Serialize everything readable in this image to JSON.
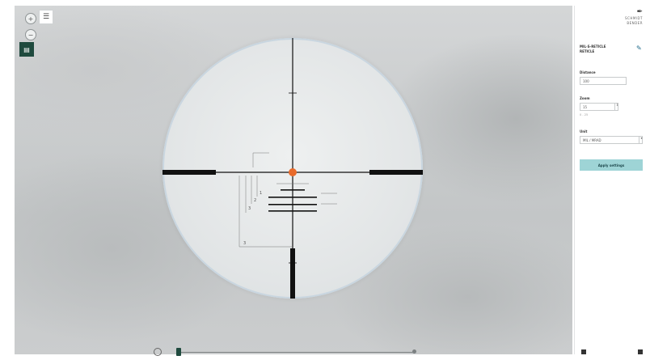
{
  "viewport": {
    "top_left_button_label": "☰",
    "zoom_in_label": "+",
    "zoom_out_label": "−",
    "green_button_label": "▤",
    "colors": {
      "accent": "#1f4a3e",
      "reticle": "#111111",
      "center_dot": "#e86a2a",
      "cyan_btn": "#9ed4d6"
    }
  },
  "reticle": {
    "labels": [
      "3",
      "3",
      "2",
      "1"
    ]
  },
  "sidebar": {
    "logo_mark": "✒",
    "logo_word": "SCHMIDT BENDER",
    "selection_title_1": "MIL-S-RETICLE",
    "selection_title_2": "RETICLE",
    "distance_label": "Distance",
    "distance_value": "100",
    "zoom_label": "Zoom",
    "zoom_value": "15",
    "zoom_hint": "0 - 25",
    "unit_label": "Unit",
    "unit_value": "MIL / MRAD",
    "apply_button": "Apply settings"
  },
  "timeline": {
    "play_icon": "play-icon"
  }
}
